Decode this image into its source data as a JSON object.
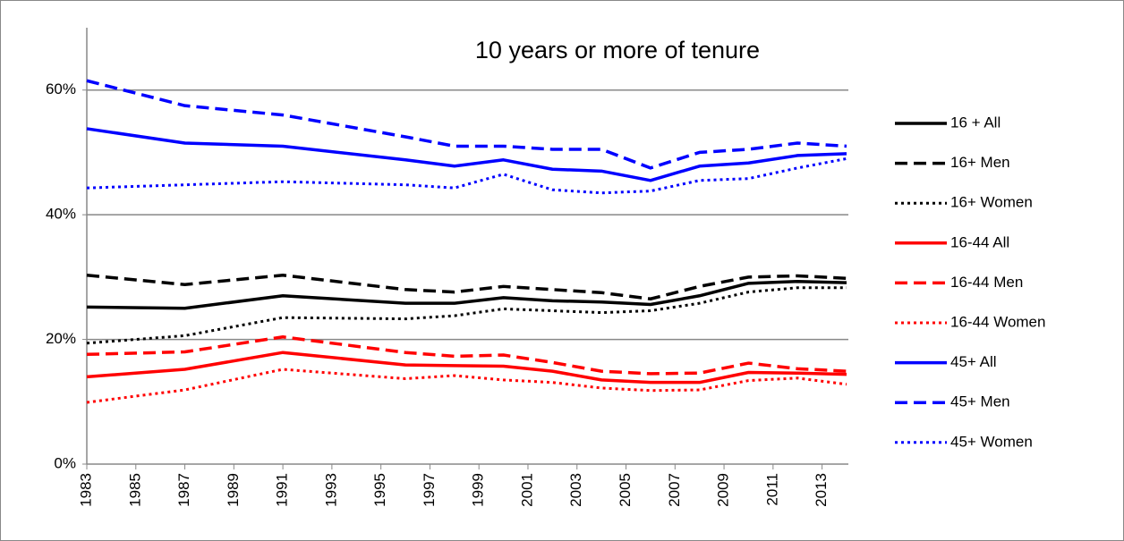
{
  "chart_data": {
    "type": "line",
    "title": "10 years or more of tenure",
    "x": [
      1983,
      1987,
      1991,
      1996,
      1998,
      2000,
      2002,
      2004,
      2006,
      2008,
      2010,
      2012,
      2014
    ],
    "xlim": [
      1983,
      2014
    ],
    "xticks": [
      1983,
      1985,
      1987,
      1989,
      1991,
      1993,
      1995,
      1997,
      1999,
      2001,
      2003,
      2005,
      2007,
      2009,
      2011,
      2013
    ],
    "ylim": [
      0,
      70
    ],
    "yticks": [
      {
        "value": 0,
        "label": "0%"
      },
      {
        "value": 20,
        "label": "20%"
      },
      {
        "value": 40,
        "label": "40%"
      },
      {
        "value": 60,
        "label": "60%"
      }
    ],
    "grid": true,
    "series": [
      {
        "name": "16 + All",
        "color": "#000000",
        "dash": "solid",
        "values": [
          25.2,
          25,
          27,
          25.8,
          25.8,
          26.7,
          26.2,
          26,
          25.6,
          27,
          29,
          29.3,
          29.1
        ]
      },
      {
        "name": "16+ Men",
        "color": "#000000",
        "dash": "dash",
        "values": [
          30.3,
          28.8,
          30.3,
          28,
          27.6,
          28.5,
          28,
          27.5,
          26.5,
          28.5,
          30,
          30.2,
          29.8
        ]
      },
      {
        "name": "16+ Women",
        "color": "#000000",
        "dash": "dot",
        "values": [
          19.4,
          20.6,
          23.5,
          23.3,
          23.8,
          24.9,
          24.6,
          24.3,
          24.6,
          25.8,
          27.6,
          28.3,
          28.3
        ]
      },
      {
        "name": "16-44 All",
        "color": "#ff0000",
        "dash": "solid",
        "values": [
          14,
          15.2,
          17.9,
          15.9,
          15.8,
          15.7,
          14.9,
          13.5,
          13.1,
          13.1,
          14.7,
          14.6,
          14.4
        ]
      },
      {
        "name": "16-44 Men",
        "color": "#ff0000",
        "dash": "dash",
        "values": [
          17.6,
          18,
          20.4,
          17.9,
          17.3,
          17.5,
          16.3,
          14.9,
          14.5,
          14.6,
          16.2,
          15.3,
          14.9
        ]
      },
      {
        "name": "16-44 Women",
        "color": "#ff0000",
        "dash": "dot",
        "values": [
          9.9,
          11.9,
          15.2,
          13.7,
          14.2,
          13.5,
          13.1,
          12.2,
          11.8,
          11.9,
          13.4,
          13.8,
          12.8
        ]
      },
      {
        "name": "45+ All",
        "color": "#0000ff",
        "dash": "solid",
        "values": [
          53.8,
          51.5,
          51,
          48.8,
          47.8,
          48.8,
          47.3,
          47,
          45.5,
          47.8,
          48.3,
          49.5,
          49.8
        ]
      },
      {
        "name": "45+ Men",
        "color": "#0000ff",
        "dash": "dash",
        "values": [
          61.5,
          57.5,
          56,
          52.5,
          51,
          51,
          50.5,
          50.5,
          47.5,
          50,
          50.5,
          51.5,
          51
        ]
      },
      {
        "name": "45+ Women",
        "color": "#0000ff",
        "dash": "dot",
        "values": [
          44.3,
          44.8,
          45.3,
          44.8,
          44.3,
          46.5,
          44,
          43.5,
          43.8,
          45.5,
          45.8,
          47.5,
          49
        ]
      }
    ]
  }
}
